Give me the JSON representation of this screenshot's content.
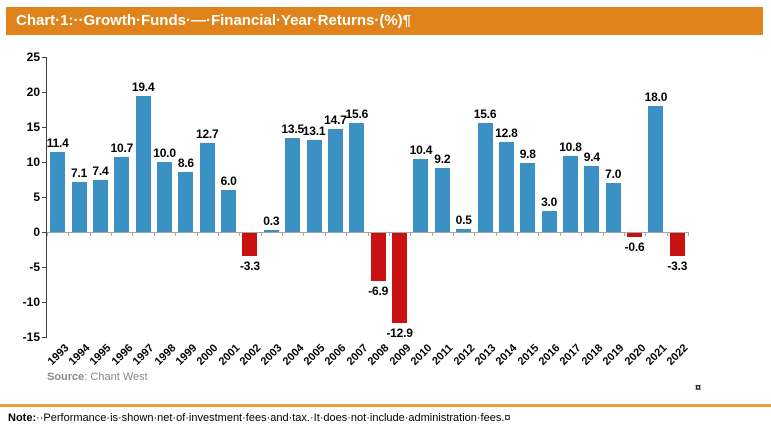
{
  "header": {
    "title": "Chart·1:··Growth·Funds·—·Financial·Year·Returns·(%)¶",
    "bg_color": "#E0831A",
    "text_color": "#FFFFFF"
  },
  "chart_data": {
    "type": "bar",
    "title": "Chart 1: Growth Funds — Financial Year Returns (%)",
    "categories": [
      "1993",
      "1994",
      "1995",
      "1996",
      "1997",
      "1998",
      "1999",
      "2000",
      "2001",
      "2002",
      "2003",
      "2004",
      "2005",
      "2006",
      "2007",
      "2008",
      "2009",
      "2010",
      "2011",
      "2012",
      "2013",
      "2014",
      "2015",
      "2016",
      "2017",
      "2018",
      "2019",
      "2020",
      "2021",
      "2022"
    ],
    "values": [
      11.4,
      7.1,
      7.4,
      10.7,
      19.4,
      10.0,
      8.6,
      12.7,
      6.0,
      -3.3,
      0.3,
      13.5,
      13.1,
      14.7,
      15.6,
      -6.9,
      -12.9,
      10.4,
      9.2,
      0.5,
      15.6,
      12.8,
      9.8,
      3.0,
      10.8,
      9.4,
      7.0,
      -0.6,
      18.0,
      -3.3
    ],
    "xlabel": "",
    "ylabel": "",
    "ylim": [
      -15,
      25
    ],
    "yticks": [
      25,
      20,
      15,
      10,
      5,
      0,
      -5,
      -10,
      -15
    ],
    "grid": false,
    "legend": null,
    "bar_color_positive": "#3B91C4",
    "bar_color_negative": "#C91111",
    "value_label_format": "one-decimal",
    "source": "Chant West"
  },
  "source_line": {
    "label": "Source",
    "rest": ": Chant West"
  },
  "marks": {
    "chart_cell_end": "¤"
  },
  "note_line": {
    "label": "Note:",
    "rest": "··Performance·is·shown·net·of·investment·fees·and·tax.·It·does·not·include·administration·fees.",
    "end_mark": "¤"
  }
}
